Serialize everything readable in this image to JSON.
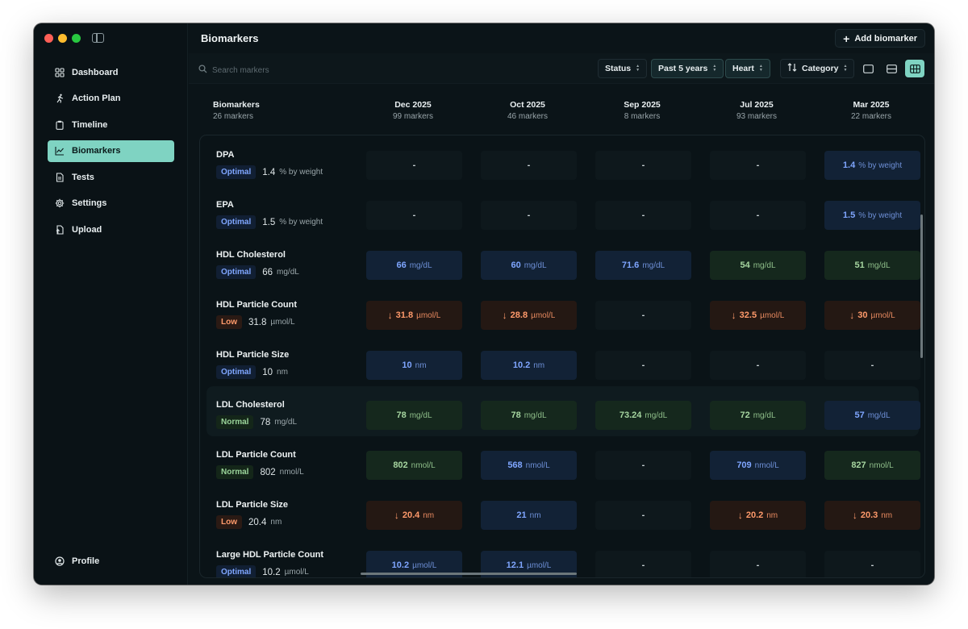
{
  "sidebar": {
    "items": [
      {
        "label": "Dashboard",
        "icon": "grid-icon",
        "active": false
      },
      {
        "label": "Action Plan",
        "icon": "running-figure-icon",
        "active": false
      },
      {
        "label": "Timeline",
        "icon": "clipboard-icon",
        "active": false
      },
      {
        "label": "Biomarkers",
        "icon": "chart-line-icon",
        "active": true
      },
      {
        "label": "Tests",
        "icon": "document-icon",
        "active": false
      },
      {
        "label": "Settings",
        "icon": "gear-icon",
        "active": false
      },
      {
        "label": "Upload",
        "icon": "upload-file-icon",
        "active": false
      }
    ],
    "profile": {
      "label": "Profile",
      "icon": "user-circle-icon"
    }
  },
  "header": {
    "title": "Biomarkers",
    "add_button": "Add biomarker"
  },
  "toolbar": {
    "search_placeholder": "Search markers",
    "status": "Status",
    "period": "Past 5 years",
    "organ": "Heart",
    "category": "Category"
  },
  "table": {
    "first_col": {
      "title": "Biomarkers",
      "count": "26 markers"
    },
    "columns": [
      {
        "date": "Dec 2025",
        "count": "99 markers"
      },
      {
        "date": "Oct 2025",
        "count": "46 markers"
      },
      {
        "date": "Sep 2025",
        "count": "8 markers"
      },
      {
        "date": "Jul 2025",
        "count": "93 markers"
      },
      {
        "date": "Mar 2025",
        "count": "22 markers"
      }
    ],
    "rows": [
      {
        "name": "DPA",
        "status": "Optimal",
        "value": "1.4",
        "unit": "% by weight",
        "highlight": false,
        "cells": [
          {
            "t": "empty",
            "v": "-"
          },
          {
            "t": "empty",
            "v": "-"
          },
          {
            "t": "empty",
            "v": "-"
          },
          {
            "t": "empty",
            "v": "-"
          },
          {
            "t": "optimal",
            "v": "1.4",
            "u": "% by weight"
          }
        ]
      },
      {
        "name": "EPA",
        "status": "Optimal",
        "value": "1.5",
        "unit": "% by weight",
        "highlight": false,
        "cells": [
          {
            "t": "empty",
            "v": "-"
          },
          {
            "t": "empty",
            "v": "-"
          },
          {
            "t": "empty",
            "v": "-"
          },
          {
            "t": "empty",
            "v": "-"
          },
          {
            "t": "optimal",
            "v": "1.5",
            "u": "% by weight"
          }
        ]
      },
      {
        "name": "HDL Cholesterol",
        "status": "Optimal",
        "value": "66",
        "unit": "mg/dL",
        "highlight": false,
        "cells": [
          {
            "t": "optimal",
            "v": "66",
            "u": "mg/dL"
          },
          {
            "t": "optimal",
            "v": "60",
            "u": "mg/dL"
          },
          {
            "t": "optimal",
            "v": "71.6",
            "u": "mg/dL"
          },
          {
            "t": "normal",
            "v": "54",
            "u": "mg/dL"
          },
          {
            "t": "normal",
            "v": "51",
            "u": "mg/dL"
          }
        ]
      },
      {
        "name": "HDL Particle Count",
        "status": "Low",
        "value": "31.8",
        "unit": "µmol/L",
        "highlight": false,
        "cells": [
          {
            "t": "low",
            "v": "31.8",
            "u": "µmol/L"
          },
          {
            "t": "low",
            "v": "28.8",
            "u": "µmol/L"
          },
          {
            "t": "empty",
            "v": "-"
          },
          {
            "t": "low",
            "v": "32.5",
            "u": "µmol/L"
          },
          {
            "t": "low",
            "v": "30",
            "u": "µmol/L"
          }
        ]
      },
      {
        "name": "HDL Particle Size",
        "status": "Optimal",
        "value": "10",
        "unit": "nm",
        "highlight": false,
        "cells": [
          {
            "t": "optimal",
            "v": "10",
            "u": "nm"
          },
          {
            "t": "optimal",
            "v": "10.2",
            "u": "nm"
          },
          {
            "t": "empty",
            "v": "-"
          },
          {
            "t": "empty",
            "v": "-"
          },
          {
            "t": "empty",
            "v": "-"
          }
        ]
      },
      {
        "name": "LDL Cholesterol",
        "status": "Normal",
        "value": "78",
        "unit": "mg/dL",
        "highlight": true,
        "cells": [
          {
            "t": "normal",
            "v": "78",
            "u": "mg/dL"
          },
          {
            "t": "normal",
            "v": "78",
            "u": "mg/dL"
          },
          {
            "t": "normal",
            "v": "73.24",
            "u": "mg/dL"
          },
          {
            "t": "normal",
            "v": "72",
            "u": "mg/dL"
          },
          {
            "t": "optimal",
            "v": "57",
            "u": "mg/dL"
          }
        ]
      },
      {
        "name": "LDL Particle Count",
        "status": "Normal",
        "value": "802",
        "unit": "nmol/L",
        "highlight": false,
        "cells": [
          {
            "t": "normal",
            "v": "802",
            "u": "nmol/L"
          },
          {
            "t": "optimal",
            "v": "568",
            "u": "nmol/L"
          },
          {
            "t": "empty",
            "v": "-"
          },
          {
            "t": "optimal",
            "v": "709",
            "u": "nmol/L"
          },
          {
            "t": "normal",
            "v": "827",
            "u": "nmol/L"
          }
        ]
      },
      {
        "name": "LDL Particle Size",
        "status": "Low",
        "value": "20.4",
        "unit": "nm",
        "highlight": false,
        "cells": [
          {
            "t": "low",
            "v": "20.4",
            "u": "nm"
          },
          {
            "t": "optimal",
            "v": "21",
            "u": "nm"
          },
          {
            "t": "empty",
            "v": "-"
          },
          {
            "t": "low",
            "v": "20.2",
            "u": "nm"
          },
          {
            "t": "low",
            "v": "20.3",
            "u": "nm"
          }
        ]
      },
      {
        "name": "Large HDL Particle Count",
        "status": "Optimal",
        "value": "10.2",
        "unit": "µmol/L",
        "highlight": false,
        "cells": [
          {
            "t": "optimal",
            "v": "10.2",
            "u": "µmol/L"
          },
          {
            "t": "optimal",
            "v": "12.1",
            "u": "µmol/L"
          },
          {
            "t": "empty",
            "v": "-"
          },
          {
            "t": "empty",
            "v": "-"
          },
          {
            "t": "empty",
            "v": "-"
          }
        ]
      }
    ]
  },
  "colors": {
    "accent": "#7fd3c2",
    "optimal": "#7fa6ff",
    "normal": "#a6d6a0",
    "low": "#ff9a6b"
  }
}
